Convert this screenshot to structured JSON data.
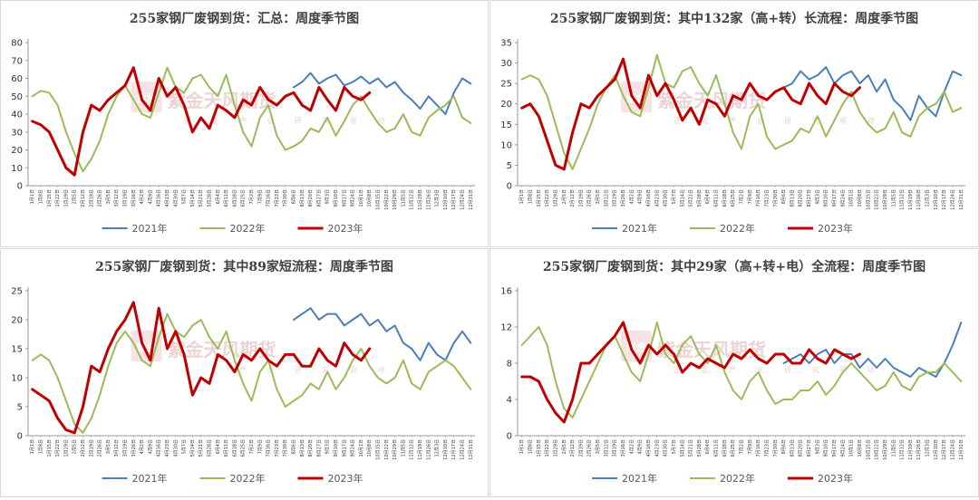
{
  "watermark": {
    "main": "紫金天风期货",
    "sub": "正 定 产 业 研 究 驱 动",
    "seal": "紫金"
  },
  "legend": [
    "2021年",
    "2022年",
    "2023年"
  ],
  "colors": {
    "2021年": "#4a7ebb",
    "2022年": "#9bbb59",
    "2023年": "#c00000"
  },
  "x_dates": [
    "1月1日",
    "1月8日",
    "1月15日",
    "1月22日",
    "1月29日",
    "2月5日",
    "2月12日",
    "2月19日",
    "2月26日",
    "3月5日",
    "3月12日",
    "3月19日",
    "3月26日",
    "4月2日",
    "4月9日",
    "4月16日",
    "4月23日",
    "4月30日",
    "5月7日",
    "5月14日",
    "5月21日",
    "5月28日",
    "6月4日",
    "6月11日",
    "6月18日",
    "6月25日",
    "7月2日",
    "7月9日",
    "7月16日",
    "7月23日",
    "7月30日",
    "8月6日",
    "8月13日",
    "8月20日",
    "8月27日",
    "9月3日",
    "9月10日",
    "9月17日",
    "9月24日",
    "10月1日",
    "10月8日",
    "10月15日",
    "10月22日",
    "10月29日",
    "11月5日",
    "11月12日",
    "11月19日",
    "11月26日",
    "12月3日",
    "12月10日",
    "12月17日",
    "12月24日",
    "12月31日"
  ],
  "chart_data": [
    {
      "type": "line",
      "title": "255家钢厂废钢到货：汇总：周度季节图",
      "ylim": [
        0,
        80
      ],
      "yticks": [
        0,
        10,
        20,
        30,
        40,
        50,
        60,
        70,
        80
      ],
      "series": [
        {
          "name": "2021年",
          "values": [
            null,
            null,
            null,
            null,
            null,
            null,
            null,
            null,
            null,
            null,
            null,
            null,
            null,
            null,
            null,
            null,
            null,
            null,
            null,
            null,
            null,
            null,
            null,
            null,
            null,
            null,
            null,
            null,
            null,
            null,
            null,
            55,
            58,
            63,
            57,
            60,
            62,
            56,
            58,
            61,
            57,
            60,
            55,
            58,
            52,
            48,
            43,
            50,
            45,
            40,
            52,
            60,
            57
          ]
        },
        {
          "name": "2022年",
          "values": [
            50,
            53,
            52,
            45,
            30,
            18,
            8,
            15,
            25,
            40,
            50,
            56,
            48,
            40,
            38,
            52,
            66,
            55,
            52,
            60,
            62,
            55,
            50,
            62,
            45,
            30,
            22,
            38,
            45,
            28,
            20,
            22,
            25,
            32,
            30,
            38,
            28,
            36,
            45,
            50,
            42,
            35,
            30,
            32,
            40,
            30,
            28,
            38,
            42,
            45,
            50,
            38,
            35
          ]
        },
        {
          "name": "2023年",
          "values": [
            36,
            34,
            30,
            20,
            10,
            6,
            30,
            45,
            42,
            48,
            52,
            56,
            66,
            48,
            42,
            60,
            50,
            55,
            45,
            30,
            38,
            32,
            45,
            42,
            38,
            48,
            45,
            55,
            48,
            45,
            50,
            52,
            45,
            42,
            55,
            48,
            42,
            55,
            50,
            48,
            52,
            null,
            null,
            null,
            null,
            null,
            null,
            null,
            null,
            null,
            null,
            null,
            null
          ]
        }
      ]
    },
    {
      "type": "line",
      "title": "255家钢厂废钢到货：其中132家（高+转）长流程：周度季节图",
      "ylim": [
        0,
        35
      ],
      "yticks": [
        0,
        5,
        10,
        15,
        20,
        25,
        30,
        35
      ],
      "series": [
        {
          "name": "2021年",
          "values": [
            null,
            null,
            null,
            null,
            null,
            null,
            null,
            null,
            null,
            null,
            null,
            null,
            null,
            null,
            null,
            null,
            null,
            null,
            null,
            null,
            null,
            null,
            null,
            null,
            null,
            null,
            null,
            null,
            null,
            null,
            null,
            24,
            25,
            28,
            26,
            27,
            29,
            25,
            27,
            28,
            25,
            27,
            23,
            26,
            21,
            19,
            16,
            22,
            19,
            17,
            23,
            28,
            27
          ]
        },
        {
          "name": "2022年",
          "values": [
            26,
            27,
            26,
            22,
            15,
            8,
            4,
            9,
            14,
            20,
            24,
            27,
            22,
            18,
            17,
            24,
            32,
            25,
            24,
            28,
            29,
            25,
            22,
            27,
            20,
            13,
            9,
            17,
            20,
            12,
            9,
            10,
            11,
            14,
            13,
            17,
            12,
            16,
            20,
            23,
            18,
            15,
            13,
            14,
            18,
            13,
            12,
            17,
            19,
            20,
            23,
            18,
            19
          ]
        },
        {
          "name": "2023年",
          "values": [
            19,
            20,
            17,
            11,
            5,
            4,
            13,
            20,
            19,
            22,
            24,
            26,
            31,
            22,
            19,
            27,
            22,
            25,
            21,
            16,
            19,
            15,
            21,
            20,
            17,
            22,
            21,
            25,
            22,
            21,
            23,
            24,
            21,
            20,
            25,
            22,
            20,
            25,
            23,
            22,
            24,
            null,
            null,
            null,
            null,
            null,
            null,
            null,
            null,
            null,
            null,
            null,
            null
          ]
        }
      ]
    },
    {
      "type": "line",
      "title": "255家钢厂废钢到货：其中89家短流程：周度季节图",
      "ylim": [
        0,
        25
      ],
      "yticks": [
        0,
        5,
        10,
        15,
        20,
        25
      ],
      "series": [
        {
          "name": "2021年",
          "values": [
            null,
            null,
            null,
            null,
            null,
            null,
            null,
            null,
            null,
            null,
            null,
            null,
            null,
            null,
            null,
            null,
            null,
            null,
            null,
            null,
            null,
            null,
            null,
            null,
            null,
            null,
            null,
            null,
            null,
            null,
            null,
            20,
            21,
            22,
            20,
            21,
            21,
            19,
            20,
            21,
            19,
            20,
            18,
            19,
            16,
            15,
            13,
            16,
            14,
            13,
            16,
            18,
            16
          ]
        },
        {
          "name": "2022年",
          "values": [
            13,
            14,
            13,
            10,
            6,
            2,
            0.5,
            3,
            7,
            12,
            16,
            18,
            16,
            13,
            12,
            17,
            21,
            18,
            17,
            19,
            20,
            17,
            15,
            18,
            13,
            9,
            6,
            11,
            13,
            8,
            5,
            6,
            7,
            9,
            8,
            11,
            8,
            10,
            13,
            15,
            12,
            10,
            9,
            10,
            13,
            9,
            8,
            11,
            12,
            13,
            12,
            10,
            8
          ]
        },
        {
          "name": "2023年",
          "values": [
            8,
            7,
            6,
            3,
            1,
            0.5,
            5,
            12,
            11,
            15,
            18,
            20,
            23,
            16,
            13,
            22,
            15,
            18,
            14,
            7,
            10,
            9,
            14,
            13,
            11,
            14,
            13,
            15,
            13,
            12,
            14,
            14,
            12,
            12,
            15,
            13,
            12,
            16,
            14,
            13,
            15,
            null,
            null,
            null,
            null,
            null,
            null,
            null,
            null,
            null,
            null,
            null,
            null
          ]
        }
      ]
    },
    {
      "type": "line",
      "title": "255家钢厂废钢到货：其中29家（高+转+电）全流程：周度季节图",
      "ylim": [
        0,
        16
      ],
      "yticks": [
        0,
        4,
        8,
        12,
        16
      ],
      "series": [
        {
          "name": "2021年",
          "values": [
            null,
            null,
            null,
            null,
            null,
            null,
            null,
            null,
            null,
            null,
            null,
            null,
            null,
            null,
            null,
            null,
            null,
            null,
            null,
            null,
            null,
            null,
            null,
            null,
            null,
            null,
            null,
            null,
            null,
            null,
            null,
            8,
            8.5,
            9,
            8,
            9,
            9.5,
            8,
            9,
            9,
            7.5,
            8.5,
            7.5,
            8.5,
            7.5,
            7,
            6.5,
            7.5,
            7,
            6.5,
            8,
            10,
            12.5
          ]
        },
        {
          "name": "2022年",
          "values": [
            10,
            11,
            12,
            10,
            6,
            3,
            2,
            4,
            6,
            8,
            10,
            11,
            9,
            7,
            6,
            9,
            12.5,
            9,
            8,
            10,
            11,
            9,
            8,
            10,
            7,
            5,
            4,
            6,
            7,
            5,
            3.5,
            4,
            4,
            5,
            5,
            6,
            4.5,
            5.5,
            7,
            8,
            7,
            6,
            5,
            5.5,
            7,
            5.5,
            5,
            6.5,
            7,
            7,
            8,
            7,
            6
          ]
        },
        {
          "name": "2023年",
          "values": [
            6.5,
            6.5,
            6,
            4,
            2.5,
            1.5,
            4,
            8,
            8,
            9,
            10,
            11,
            12.5,
            9.5,
            8,
            10,
            9,
            10,
            9,
            7,
            8,
            7.5,
            8.5,
            8,
            7.5,
            9,
            8.5,
            9.5,
            8.5,
            8,
            9,
            9,
            8,
            8,
            9.5,
            8.5,
            8,
            9.5,
            9,
            8.5,
            9,
            null,
            null,
            null,
            null,
            null,
            null,
            null,
            null,
            null,
            null,
            null,
            null
          ]
        }
      ]
    }
  ]
}
